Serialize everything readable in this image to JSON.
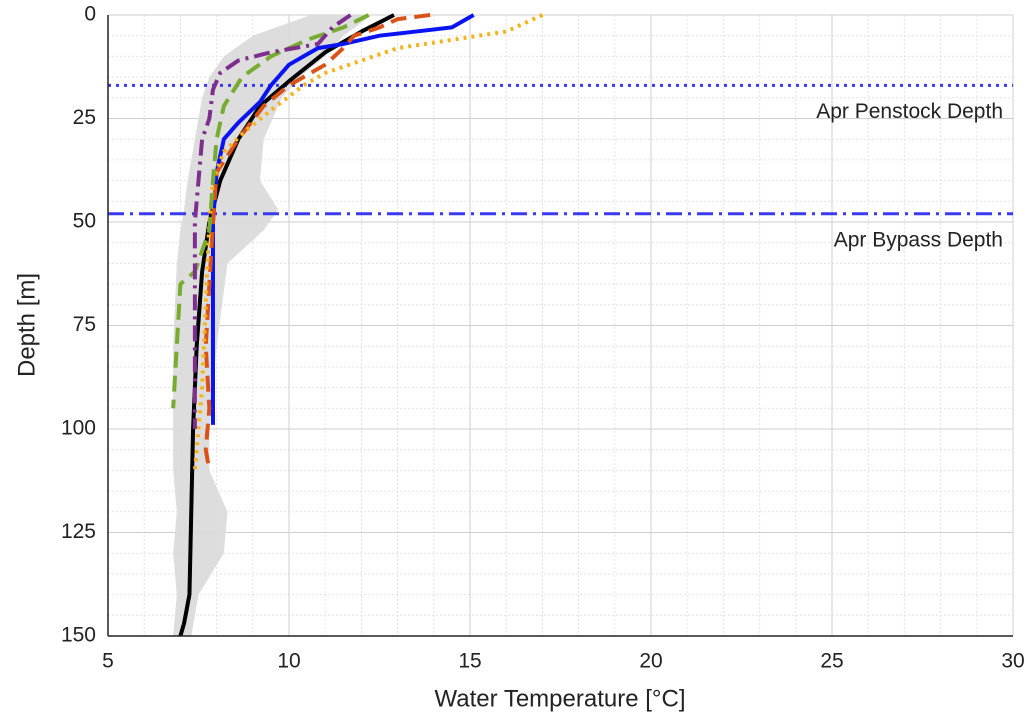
{
  "chart_data": {
    "type": "profile",
    "xlabel": "Water Temperature [°C]",
    "ylabel": "Depth [m]",
    "xlim": [
      5,
      30
    ],
    "ylim": [
      0,
      150
    ],
    "y_inverted": true,
    "xticks": [
      5,
      10,
      15,
      20,
      25,
      30
    ],
    "yticks": [
      0,
      25,
      50,
      75,
      100,
      125,
      150
    ],
    "grid": true,
    "x_minor_step": 1,
    "y_minor_step": 5,
    "band": {
      "color": "#d9d9d9",
      "depth": [
        0,
        5,
        10,
        15,
        20,
        30,
        40,
        47,
        52,
        60,
        80,
        100,
        110,
        120,
        130,
        140,
        150
      ],
      "lower": [
        10.6,
        9,
        8.2,
        7.8,
        7.6,
        7.4,
        7.2,
        7.1,
        7,
        6.9,
        6.8,
        6.8,
        6.8,
        6.9,
        6.8,
        6.9,
        6.8
      ],
      "upper": [
        12.3,
        11.5,
        11,
        10.3,
        9.8,
        9.3,
        9.2,
        9.7,
        9.3,
        8.3,
        8,
        7.8,
        7.8,
        8.3,
        8.2,
        7.5,
        7.3
      ]
    },
    "series": [
      {
        "color": "#000000",
        "style": "solid",
        "temperature": [
          12.9,
          12,
          11,
          10,
          9.2,
          8.6,
          8.1,
          7.8,
          7.6,
          7.45,
          7.35,
          7.3,
          7.25,
          7.1,
          7
        ],
        "depth": [
          0,
          4,
          9,
          16,
          22,
          30,
          40,
          50,
          62,
          80,
          100,
          120,
          140,
          147,
          150
        ]
      },
      {
        "color": "#0a14f0",
        "style": "solid",
        "temperature": [
          15.1,
          14.5,
          13.5,
          12.5,
          11.5,
          10.8,
          10.6,
          10,
          9.5,
          9.2,
          8.6,
          8.2,
          8,
          7.9,
          7.9,
          7.9
        ],
        "depth": [
          0,
          3,
          4,
          5,
          7,
          8,
          9,
          12,
          17,
          21,
          26,
          30,
          38,
          50,
          70,
          99
        ]
      },
      {
        "color": "#d95319",
        "style": "dashed",
        "temperature": [
          13.9,
          13,
          12.5,
          11.8,
          11.5,
          11,
          10,
          9.3,
          8.6,
          8,
          7.9,
          7.8,
          7.7,
          7.8,
          7.7,
          7.8
        ],
        "depth": [
          0,
          1,
          3,
          5,
          8,
          12,
          17,
          22,
          30,
          38,
          50,
          65,
          80,
          95,
          105,
          110
        ]
      },
      {
        "color": "#f5b21a",
        "style": "dotted",
        "temperature": [
          17,
          16,
          14.5,
          13,
          12,
          11,
          10.4,
          9.5,
          8.8,
          8.2,
          7.9,
          7.8,
          7.7,
          7.6,
          7.5,
          7.4
        ],
        "depth": [
          0,
          4,
          6,
          8,
          11,
          14,
          17,
          23,
          28,
          33,
          40,
          50,
          70,
          90,
          100,
          110
        ]
      },
      {
        "color": "#77ac30",
        "style": "dashed",
        "temperature": [
          12.2,
          11.5,
          10.5,
          9.5,
          8.7,
          8.2,
          8,
          7.9,
          7.8,
          7.4,
          7,
          6.9,
          6.8
        ],
        "depth": [
          0,
          3,
          6,
          10,
          15,
          22,
          30,
          40,
          52,
          62,
          65,
          80,
          95
        ]
      },
      {
        "color": "#7e2f8e",
        "style": "dashdot",
        "temperature": [
          11.7,
          11.2,
          10.8,
          9.5,
          8.6,
          8.1,
          7.9,
          7.8,
          7.6,
          7.5,
          7.4,
          7.4,
          7.4,
          7.4
        ],
        "depth": [
          0,
          3,
          7,
          9,
          11,
          14,
          18,
          25,
          30,
          40,
          50,
          70,
          90,
          100
        ]
      }
    ],
    "hlines": [
      {
        "value": 17,
        "color": "#3a3af0",
        "style": "dotted",
        "label": "Apr Penstock Depth"
      },
      {
        "value": 48,
        "color": "#3a3af0",
        "style": "dashdot",
        "label": "Apr Bypass Depth"
      }
    ]
  }
}
